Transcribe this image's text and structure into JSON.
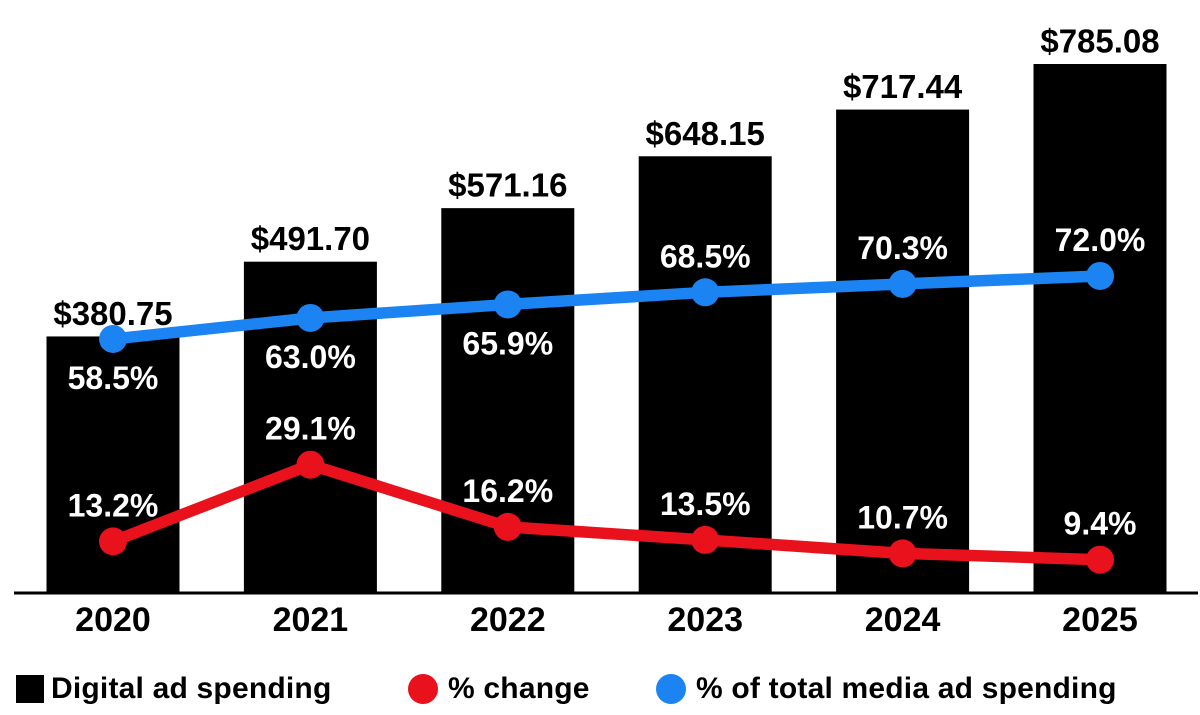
{
  "chart_data": {
    "type": "bar",
    "subtype": "bar-line-combo",
    "title": "",
    "xlabel": "",
    "ylabel": "",
    "grid": false,
    "legend_position": "bottom",
    "categories": [
      "2020",
      "2021",
      "2022",
      "2023",
      "2024",
      "2025"
    ],
    "primary_axis": {
      "unit": "USD billions",
      "range": [
        0,
        785.08
      ]
    },
    "secondary_axis": {
      "unit": "%",
      "range": [
        0,
        100
      ]
    },
    "series": [
      {
        "name": "Digital ad spending",
        "type": "bar",
        "color": "#000000",
        "values": [
          380.75,
          491.7,
          571.16,
          648.15,
          717.44,
          785.08
        ],
        "labels": [
          "$380.75",
          "$491.70",
          "$571.16",
          "$648.15",
          "$717.44",
          "$785.08"
        ],
        "label_color": "#000000"
      },
      {
        "name": "% change",
        "type": "line",
        "color": "#e8111c",
        "values": [
          13.2,
          29.1,
          16.2,
          13.5,
          10.7,
          9.4
        ],
        "labels": [
          "13.2%",
          "29.1%",
          "16.2%",
          "13.5%",
          "10.7%",
          "9.4%"
        ],
        "label_positions": [
          "above",
          "above",
          "above",
          "above",
          "above",
          "above"
        ],
        "label_color": "#ffffff"
      },
      {
        "name": "% of total media ad spending",
        "type": "line",
        "color": "#1b83f2",
        "values": [
          58.5,
          63.0,
          65.9,
          68.5,
          70.3,
          72.0
        ],
        "labels": [
          "58.5%",
          "63.0%",
          "65.9%",
          "68.5%",
          "70.3%",
          "72.0%"
        ],
        "label_positions": [
          "below",
          "below",
          "below",
          "above",
          "above",
          "above"
        ],
        "label_color": "#ffffff"
      }
    ],
    "axis_line_color": "#000000",
    "category_label_color": "#000000"
  },
  "legend": {
    "items": [
      {
        "label": "Digital ad spending",
        "marker": "square",
        "color": "#000000"
      },
      {
        "label": "% change",
        "marker": "circle",
        "color": "#e8111c"
      },
      {
        "label": "% of total media ad spending",
        "marker": "circle",
        "color": "#1b83f2"
      }
    ]
  }
}
